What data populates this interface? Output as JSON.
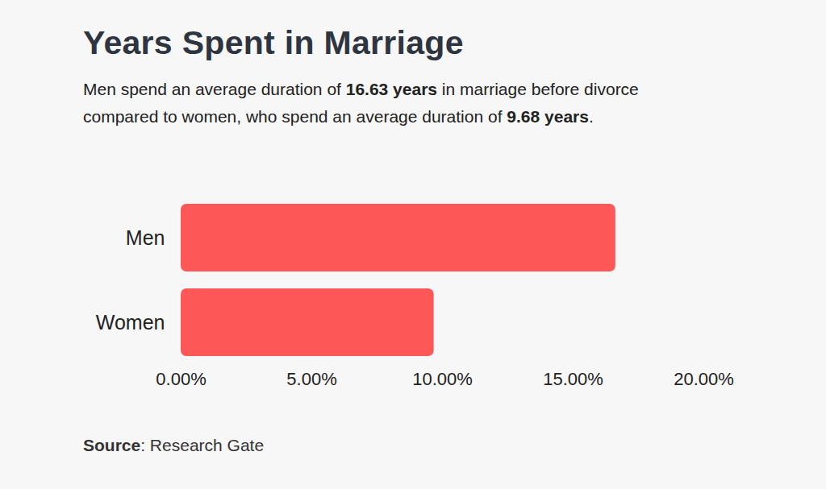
{
  "chart_data": {
    "type": "bar",
    "orientation": "horizontal",
    "title": "Years Spent in Marriage",
    "subtitle": "Men spend an average duration of 16.63 years in marriage before divorce compared to women, who spend an average duration of 9.68 years.",
    "categories": [
      "Men",
      "Women"
    ],
    "values": [
      16.63,
      9.68
    ],
    "color": "#fe5757",
    "xlim": [
      0,
      20
    ],
    "xticks": [
      {
        "value": 0,
        "label": "0.00%"
      },
      {
        "value": 5,
        "label": "5.00%"
      },
      {
        "value": 10,
        "label": "10.00%"
      },
      {
        "value": 15,
        "label": "15.00%"
      },
      {
        "value": 20,
        "label": "20.00%"
      }
    ],
    "grid": false,
    "source": "Source: Research Gate"
  }
}
